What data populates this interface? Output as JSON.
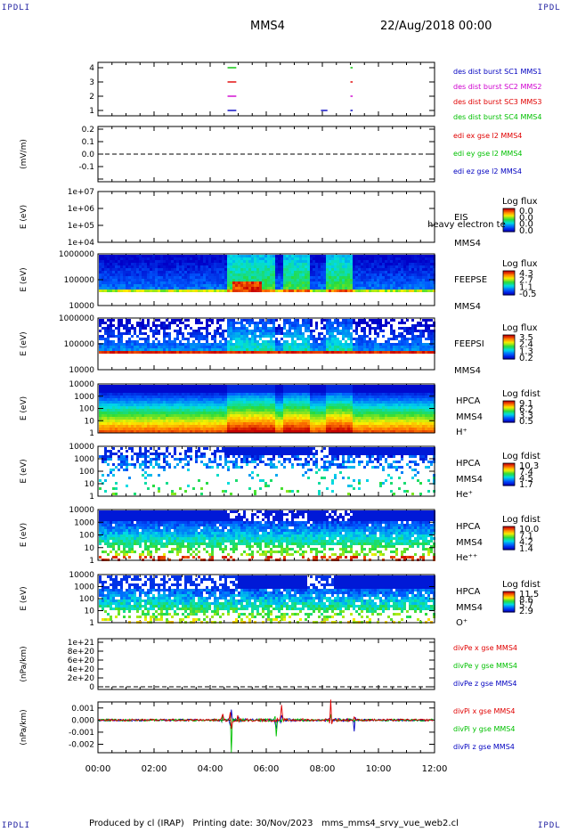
{
  "header": {
    "corner_label": "IPDLI",
    "spacecraft": "MMS4",
    "date": "22/Aug/2018 00:00"
  },
  "footer": {
    "text": "Produced by cl (IRAP)   Printing date: 30/Nov/2023   mms_mms4_srvy_vue_web2.cl"
  },
  "colors": {
    "mms1": "#0000c0",
    "mms2": "#d000d0",
    "mms3": "#e00000",
    "mms4": "#00c000",
    "x_comp": "#e00000",
    "y_comp": "#00c000",
    "z_comp": "#0000c0"
  },
  "chart_data": [
    {
      "type": "scatter",
      "id": "burst",
      "yticks": [
        "4",
        "3",
        "2",
        "1"
      ],
      "legend": [
        "des dist burst SC1 MMS1",
        "des dist burst SC2 MMS2",
        "des dist burst SC3 MMS3",
        "des dist burst SC4 MMS4"
      ],
      "series": [
        {
          "sc": 4,
          "intervals": [
            [
              4.62,
              4.9
            ],
            [
              9.0,
              9.05
            ]
          ]
        },
        {
          "sc": 3,
          "intervals": [
            [
              4.62,
              4.9
            ],
            [
              9.0,
              9.05
            ]
          ]
        },
        {
          "sc": 2,
          "intervals": [
            [
              4.62,
              4.9
            ],
            [
              9.0,
              9.05
            ]
          ]
        },
        {
          "sc": 1,
          "intervals": [
            [
              4.62,
              4.9
            ],
            [
              7.95,
              8.15
            ],
            [
              9.0,
              9.05
            ]
          ]
        }
      ]
    },
    {
      "type": "line",
      "id": "edi",
      "ylabel": "(mV/m)",
      "yticks": [
        "0.2",
        "0.1",
        "0.0",
        "-0.1"
      ],
      "ylim": [
        -0.2,
        0.2
      ],
      "legend": [
        "edi ex gse l2 MMS4",
        "edi ey gse l2 MMS4",
        "edi ez gse l2 MMS4"
      ]
    },
    {
      "type": "heatmap",
      "id": "eis",
      "ylabel": "E (eV)",
      "yticks": [
        "1e+07",
        "1e+06",
        "1e+05",
        "1e+04"
      ],
      "label": [
        "EIS",
        "MMS4"
      ],
      "overlay_text": "heavy electron te",
      "colorbar": {
        "title": "Log flux",
        "ticks": [
          "0.0",
          "0.0",
          "0.0",
          "0.0"
        ]
      }
    },
    {
      "type": "heatmap",
      "id": "feepse",
      "ylabel": "E (eV)",
      "yticks": [
        "1000000",
        "100000",
        "10000"
      ],
      "label": [
        "FEEPSE",
        "MMS4"
      ],
      "colorbar": {
        "title": "Log flux",
        "ticks": [
          "4.3",
          "2.7",
          "1.1",
          "-0.5"
        ]
      }
    },
    {
      "type": "heatmap",
      "id": "feepsi",
      "ylabel": "E (eV)",
      "yticks": [
        "1000000",
        "100000",
        "10000"
      ],
      "label": [
        "FEEPSI",
        "MMS4"
      ],
      "colorbar": {
        "title": "Log flux",
        "ticks": [
          "3.5",
          "2.4",
          "1.3",
          "0.2"
        ]
      }
    },
    {
      "type": "heatmap",
      "id": "hpca_h",
      "ylabel": "E (eV)",
      "yticks": [
        "10000",
        "1000",
        "100",
        "10",
        "1"
      ],
      "label": [
        "HPCA",
        "MMS4",
        "H⁺"
      ],
      "colorbar": {
        "title": "Log fdist",
        "ticks": [
          "9.1",
          "6.2",
          "3.3",
          "0.5"
        ]
      }
    },
    {
      "type": "heatmap",
      "id": "hpca_he",
      "ylabel": "E (eV)",
      "yticks": [
        "10000",
        "1000",
        "100",
        "10",
        "1"
      ],
      "label": [
        "HPCA",
        "MMS4",
        "He⁺"
      ],
      "colorbar": {
        "title": "Log fdist",
        "ticks": [
          "10.3",
          "7.4",
          "4.5",
          "1.7"
        ]
      }
    },
    {
      "type": "heatmap",
      "id": "hpca_hepp",
      "ylabel": "E (eV)",
      "yticks": [
        "10000",
        "1000",
        "100",
        "10",
        "1"
      ],
      "label": [
        "HPCA",
        "MMS4",
        "He⁺⁺"
      ],
      "colorbar": {
        "title": "Log fdist",
        "ticks": [
          "10.0",
          "7.1",
          "4.2",
          "1.4"
        ]
      }
    },
    {
      "type": "heatmap",
      "id": "hpca_o",
      "ylabel": "E (eV)",
      "yticks": [
        "10000",
        "1000",
        "100",
        "10",
        "1"
      ],
      "label": [
        "HPCA",
        "MMS4",
        "O⁺"
      ],
      "colorbar": {
        "title": "Log fdist",
        "ticks": [
          "11.5",
          "8.6",
          "5.7",
          "2.9"
        ]
      }
    },
    {
      "type": "line",
      "id": "divpe",
      "ylabel": "(nPa/km)",
      "yticks": [
        "1e+21",
        "8e+20",
        "6e+20",
        "4e+20",
        "2e+20",
        "0"
      ],
      "legend": [
        "divPe x gse MMS4",
        "divPe y gse MMS4",
        "divPe z gse MMS4"
      ]
    },
    {
      "type": "line",
      "id": "divpi",
      "ylabel": "(nPa/km)",
      "yticks": [
        "0.001",
        "0.000",
        "-0.001",
        "-0.002"
      ],
      "ylim": [
        -0.0027,
        0.0015
      ],
      "legend": [
        "divPi x gse MMS4",
        "divPi y gse MMS4",
        "divPi z gse MMS4"
      ],
      "spikes": [
        {
          "t": 4.45,
          "x": 0.0006,
          "y": 0.0004,
          "z": -0.0008
        },
        {
          "t": 4.75,
          "x": 0.0012,
          "y": -0.0022,
          "z": -0.0012
        },
        {
          "t": 5.0,
          "x": 0.0005,
          "y": 0.0003,
          "z": -0.0005
        },
        {
          "t": 6.35,
          "x": 0.0004,
          "y": -0.0015,
          "z": -0.0008
        },
        {
          "t": 6.55,
          "x": 0.0013,
          "y": 0.0005,
          "z": -0.0009
        },
        {
          "t": 8.3,
          "x": 0.0012,
          "y": -0.0006,
          "z": -0.0007
        },
        {
          "t": 9.15,
          "x": 0.0003,
          "y": 0.0002,
          "z": -0.0012
        }
      ]
    }
  ],
  "xaxis": {
    "range_hours": [
      0,
      12
    ],
    "ticks": [
      "00:00",
      "02:00",
      "04:00",
      "06:00",
      "08:00",
      "10:00",
      "12:00"
    ]
  }
}
